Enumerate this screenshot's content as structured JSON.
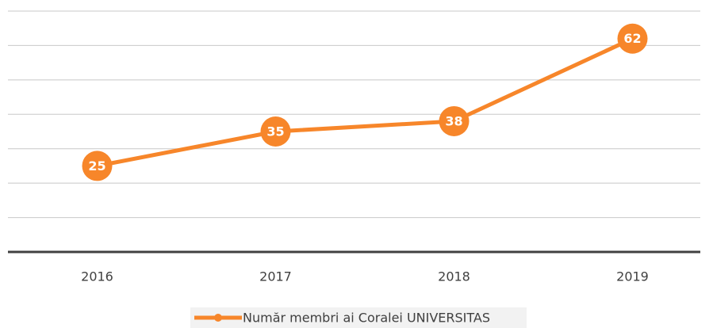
{
  "chart_data": {
    "type": "line",
    "categories": [
      "2016",
      "2017",
      "2018",
      "2019"
    ],
    "series": [
      {
        "name": "Număr membri ai Coralei UNIVERSITAS",
        "color": "#f7862a",
        "values": [
          25,
          35,
          38,
          62
        ]
      }
    ],
    "ylim": [
      0,
      70
    ],
    "yticks": [
      0,
      10,
      20,
      30,
      40,
      50,
      60,
      70
    ],
    "grid": true,
    "legend": "bottom"
  }
}
